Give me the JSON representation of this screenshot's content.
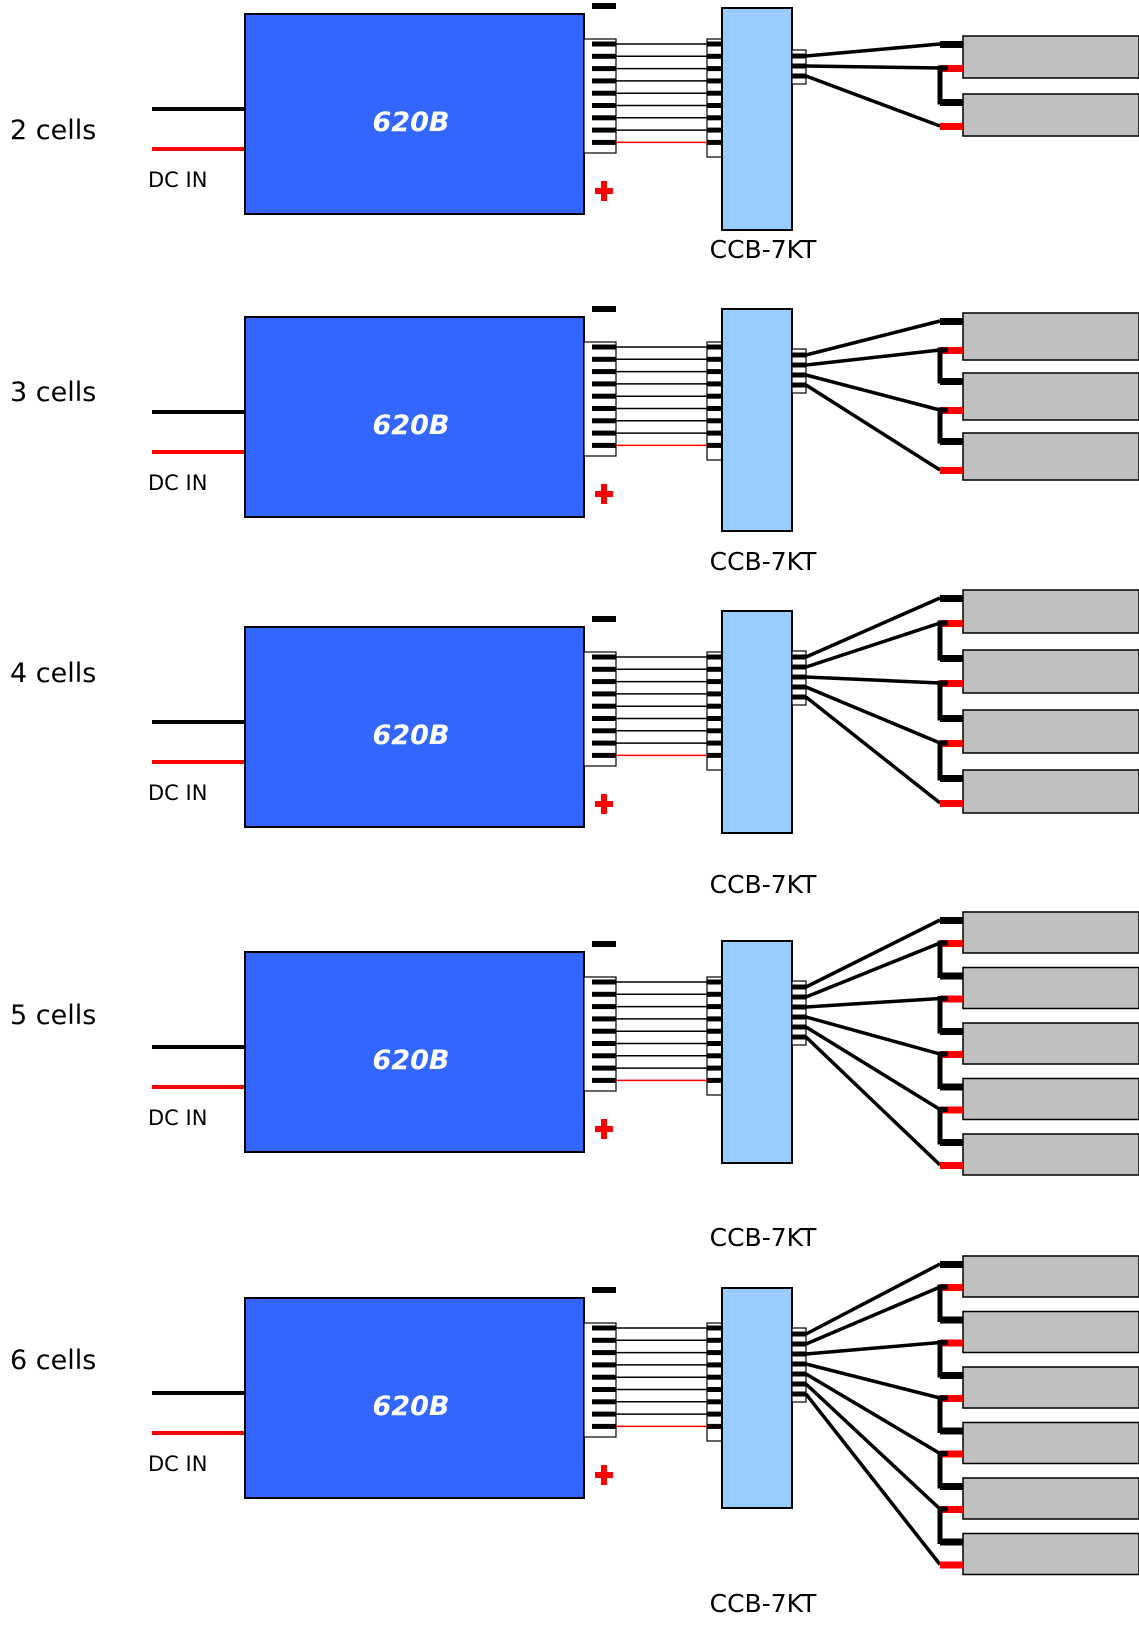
{
  "colors": {
    "charger_fill": "#3366ff",
    "board_fill": "#99ccff",
    "cell_fill": "#c0c0c0",
    "wire_black": "#000000",
    "wire_red": "#ff0000"
  },
  "rows": [
    {
      "cells_label": "2 cells",
      "cell_count": 2,
      "dc_in_label": "DC IN",
      "charger_label": "620B",
      "board_label": "CCB-7KT"
    },
    {
      "cells_label": "3 cells",
      "cell_count": 3,
      "dc_in_label": "DC IN",
      "charger_label": "620B",
      "board_label": "CCB-7KT"
    },
    {
      "cells_label": "4 cells",
      "cell_count": 4,
      "dc_in_label": "DC IN",
      "charger_label": "620B",
      "board_label": "CCB-7KT"
    },
    {
      "cells_label": "5 cells",
      "cell_count": 5,
      "dc_in_label": "DC IN",
      "charger_label": "620B",
      "board_label": "CCB-7KT"
    },
    {
      "cells_label": "6 cells",
      "cell_count": 6,
      "dc_in_label": "DC IN",
      "charger_label": "620B",
      "board_label": "CCB-7KT"
    }
  ]
}
